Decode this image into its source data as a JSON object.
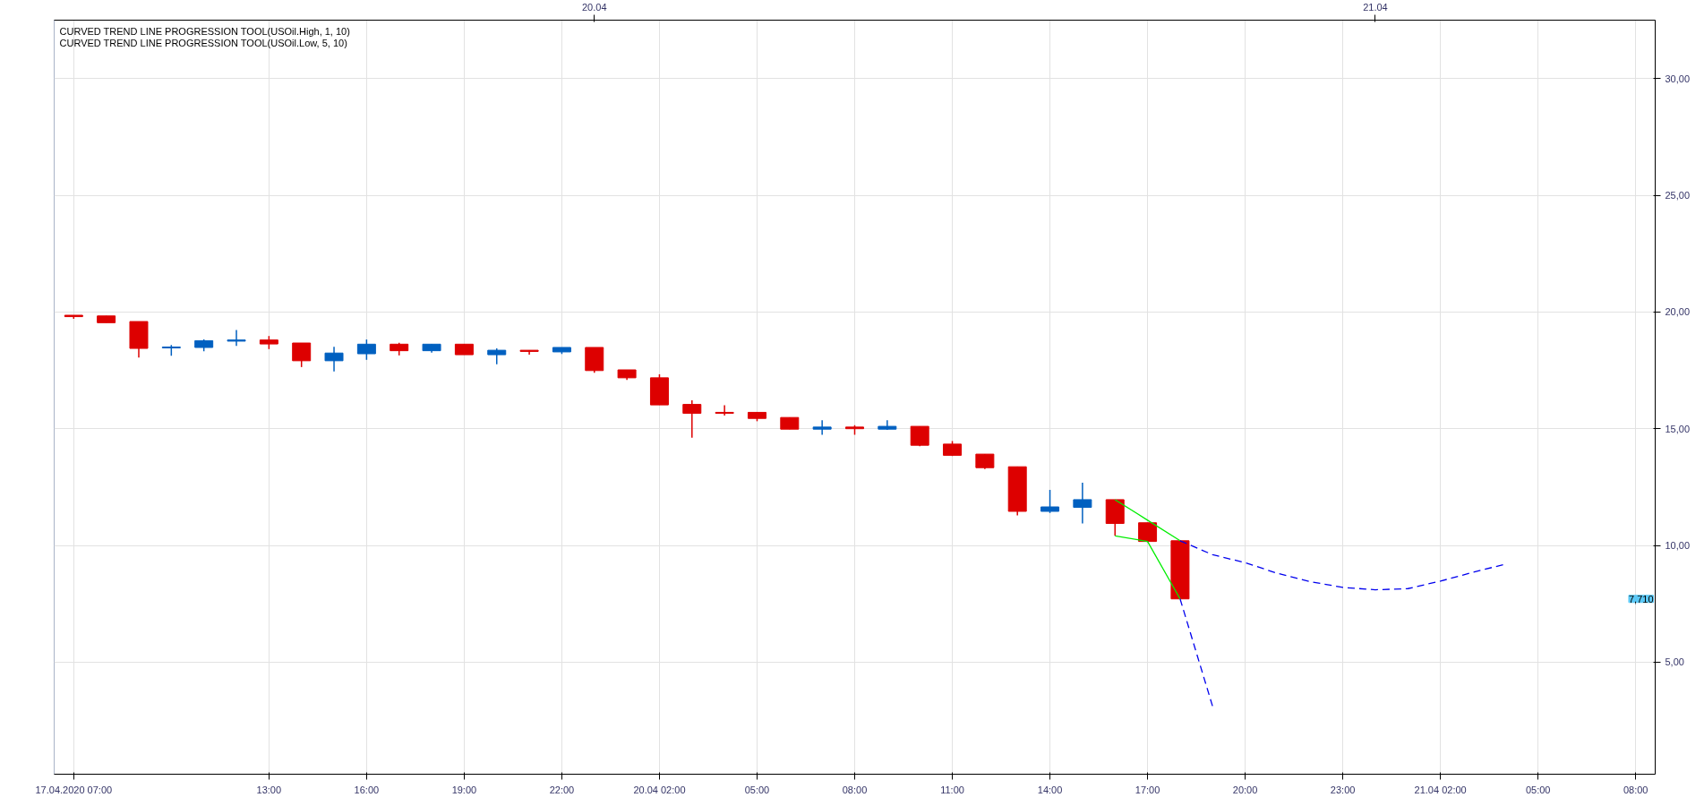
{
  "chart_data": {
    "type": "candlestick",
    "categories": [
      "17.04.2020 07:00",
      null,
      null,
      null,
      null,
      null,
      "13:00",
      null,
      null,
      "16:00",
      null,
      null,
      "19:00",
      null,
      null,
      "22:00",
      null,
      null,
      "20.04 02:00",
      null,
      null,
      "05:00",
      null,
      null,
      "08:00",
      null,
      null,
      "11:00",
      null,
      null,
      "14:00",
      null,
      null,
      "17:00",
      null,
      null,
      "20:00",
      null,
      null,
      "23:00",
      null,
      null,
      "21.04 02:00",
      null,
      null,
      "05:00",
      null,
      null,
      "08:00"
    ],
    "ohlc": [
      [
        19.86,
        19.86,
        19.71,
        19.8
      ],
      [
        19.83,
        19.83,
        19.54,
        19.54
      ],
      [
        19.59,
        19.59,
        18.05,
        18.44
      ],
      [
        18.46,
        18.58,
        18.12,
        18.5
      ],
      [
        18.48,
        18.82,
        18.32,
        18.77
      ],
      [
        18.75,
        19.23,
        18.55,
        18.8
      ],
      [
        18.8,
        18.97,
        18.41,
        18.63
      ],
      [
        18.67,
        18.67,
        17.64,
        17.91
      ],
      [
        17.91,
        18.51,
        17.45,
        18.24
      ],
      [
        18.21,
        18.82,
        17.95,
        18.62
      ],
      [
        18.62,
        18.68,
        18.14,
        18.34
      ],
      [
        18.34,
        18.62,
        18.26,
        18.62
      ],
      [
        18.62,
        18.62,
        18.17,
        18.17
      ],
      [
        18.17,
        18.44,
        17.76,
        18.36
      ],
      [
        18.36,
        18.36,
        18.17,
        18.31
      ],
      [
        18.29,
        18.48,
        18.2,
        18.48
      ],
      [
        18.48,
        18.48,
        17.4,
        17.49
      ],
      [
        17.52,
        17.52,
        17.09,
        17.18
      ],
      [
        17.18,
        17.33,
        16.02,
        16.02
      ],
      [
        16.04,
        16.22,
        14.61,
        15.66
      ],
      [
        15.7,
        16.0,
        15.56,
        15.66
      ],
      [
        15.7,
        15.7,
        15.32,
        15.44
      ],
      [
        15.48,
        15.48,
        14.98,
        14.98
      ],
      [
        14.98,
        15.36,
        14.74,
        15.07
      ],
      [
        15.07,
        15.15,
        14.74,
        15.0
      ],
      [
        14.98,
        15.36,
        14.95,
        15.1
      ],
      [
        15.1,
        15.1,
        14.25,
        14.29
      ],
      [
        14.34,
        14.47,
        13.83,
        13.86
      ],
      [
        13.91,
        13.91,
        13.27,
        13.33
      ],
      [
        13.37,
        13.37,
        11.29,
        11.46
      ],
      [
        11.46,
        12.38,
        11.39,
        11.65
      ],
      [
        11.63,
        12.69,
        10.94,
        11.96
      ],
      [
        11.96,
        11.96,
        10.41,
        10.94
      ],
      [
        10.97,
        10.97,
        10.14,
        10.17
      ],
      [
        10.2,
        10.2,
        7.71,
        7.71
      ],
      null,
      null,
      null,
      null,
      null,
      null,
      null,
      null,
      null,
      null,
      null,
      null,
      null,
      null
    ],
    "colors": [
      "#dd0000",
      "#dd0000",
      "#dd0000",
      "#0060c0",
      "#0060c0",
      "#0060c0",
      "#dd0000",
      "#dd0000",
      "#0060c0",
      "#0060c0",
      "#dd0000",
      "#0060c0",
      "#dd0000",
      "#0060c0",
      "#dd0000",
      "#0060c0",
      "#dd0000",
      "#dd0000",
      "#dd0000",
      "#dd0000",
      "#dd0000",
      "#dd0000",
      "#dd0000",
      "#0060c0",
      "#dd0000",
      "#0060c0",
      "#dd0000",
      "#dd0000",
      "#dd0000",
      "#dd0000",
      "#0060c0",
      "#0060c0",
      "#dd0000",
      "#dd0000",
      "#dd0000",
      null,
      null,
      null,
      null,
      null,
      null,
      null,
      null,
      null,
      null,
      null,
      null,
      null,
      null
    ],
    "series": [
      {
        "type": "line",
        "color": "#00ee00",
        "line_style": "solid",
        "values": [
          null,
          null,
          null,
          null,
          null,
          null,
          null,
          null,
          null,
          null,
          null,
          null,
          null,
          null,
          null,
          null,
          null,
          null,
          null,
          null,
          null,
          null,
          null,
          null,
          null,
          null,
          null,
          null,
          null,
          null,
          null,
          null,
          11.96,
          11.08,
          10.2,
          null,
          null,
          null,
          null,
          null,
          null,
          null,
          null,
          null,
          null,
          null,
          null,
          null,
          null
        ]
      },
      {
        "type": "line",
        "color": "#00ee00",
        "line_style": "solid",
        "values": [
          null,
          null,
          null,
          null,
          null,
          null,
          null,
          null,
          null,
          null,
          null,
          null,
          null,
          null,
          null,
          null,
          null,
          null,
          null,
          null,
          null,
          null,
          null,
          null,
          null,
          null,
          null,
          null,
          null,
          null,
          null,
          null,
          10.41,
          10.17,
          7.71,
          null,
          null,
          null,
          null,
          null,
          null,
          null,
          null,
          null,
          null,
          null,
          null,
          null,
          null
        ]
      },
      {
        "type": "line",
        "color": "#0000ee",
        "line_style": "dashed",
        "values": [
          null,
          null,
          null,
          null,
          null,
          null,
          null,
          null,
          null,
          null,
          null,
          null,
          null,
          null,
          null,
          null,
          null,
          null,
          null,
          null,
          null,
          null,
          null,
          null,
          null,
          null,
          null,
          null,
          null,
          null,
          null,
          null,
          null,
          null,
          10.2,
          9.6,
          9.26,
          8.8,
          8.45,
          8.2,
          8.1,
          8.15,
          8.47,
          8.85,
          9.2,
          null,
          null,
          null,
          null
        ]
      },
      {
        "type": "line",
        "color": "#0000ee",
        "line_style": "dashed",
        "values": [
          null,
          null,
          null,
          null,
          null,
          null,
          null,
          null,
          null,
          null,
          null,
          null,
          null,
          null,
          null,
          null,
          null,
          null,
          null,
          null,
          null,
          null,
          null,
          null,
          null,
          null,
          null,
          null,
          null,
          null,
          null,
          null,
          null,
          null,
          7.71,
          3.1,
          null,
          null,
          null,
          null,
          null,
          null,
          null,
          null,
          null,
          null,
          null,
          null,
          null
        ]
      }
    ],
    "ylim": [
      0.2,
      32.5
    ],
    "yticks": [
      {
        "value": 5,
        "label": "5,00"
      },
      {
        "value": 10,
        "label": "10,00"
      },
      {
        "value": 15,
        "label": "15,00"
      },
      {
        "value": 20,
        "label": "20,00"
      },
      {
        "value": 25,
        "label": "25,00"
      },
      {
        "value": 30,
        "label": "30,00"
      }
    ],
    "grid": true,
    "annotations": [
      "CURVED TREND LINE PROGRESSION TOOL(USOil.High, 1, 10)",
      "CURVED TREND LINE PROGRESSION TOOL(USOil.Low, 5, 10)",
      "20.04",
      "21.04",
      "7,710"
    ]
  }
}
